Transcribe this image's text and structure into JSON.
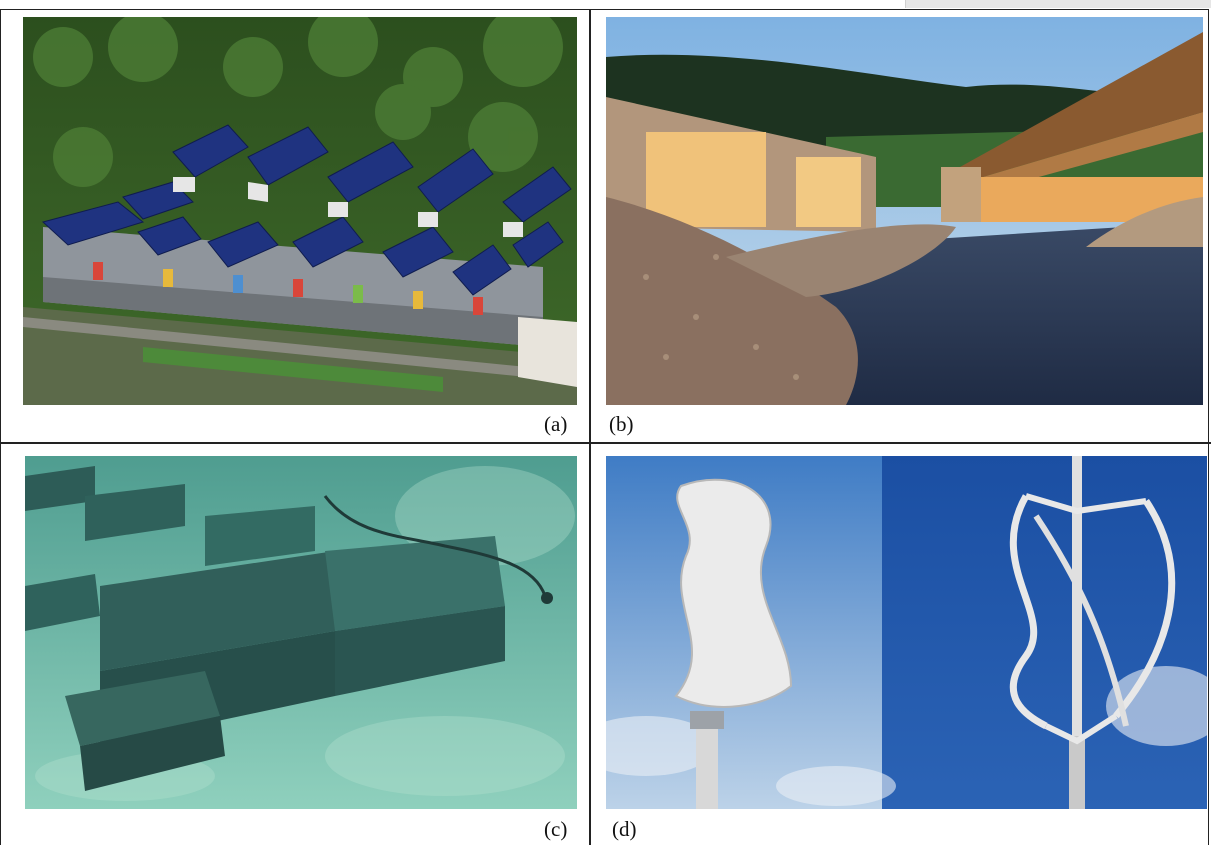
{
  "panels": [
    {
      "id": "a",
      "label": "(a)"
    },
    {
      "id": "b",
      "label": "(b)"
    },
    {
      "id": "c",
      "label": "(c)"
    },
    {
      "id": "d",
      "label": "(d)"
    }
  ],
  "colors": {
    "border": "#222222",
    "forest": "#2f5a23",
    "solar_panel": "#1f3380",
    "sky": "#6fa8dc",
    "water": "#5fb6a8",
    "turbine": "#e8e8e8"
  }
}
